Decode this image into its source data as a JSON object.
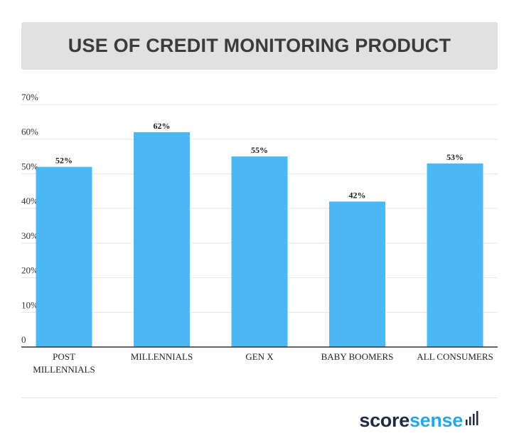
{
  "title": "USE OF CREDIT MONITORING PRODUCT",
  "colors": {
    "bar": "#4bb8f3",
    "grid": "#e3e3e3",
    "axis": "#333333",
    "brand_dark": "#1f2a44",
    "brand_light": "#27a6e6"
  },
  "chart_data": {
    "type": "bar",
    "categories": [
      [
        "POST",
        "MILLENNIALS"
      ],
      [
        "MILLENNIALS"
      ],
      [
        "GEN X"
      ],
      [
        "BABY BOOMERS"
      ],
      [
        "ALL CONSUMERS"
      ]
    ],
    "values": [
      52,
      62,
      55,
      42,
      53
    ],
    "value_labels": [
      "52%",
      "62%",
      "55%",
      "42%",
      "53%"
    ],
    "y_ticks": [
      0,
      10,
      20,
      30,
      40,
      50,
      60,
      70
    ],
    "y_tick_labels": [
      "0",
      "10%",
      "20%",
      "30%",
      "40%",
      "50%",
      "60%",
      "70%"
    ],
    "ylim": [
      0,
      70
    ],
    "grid": true,
    "title": "USE OF CREDIT MONITORING PRODUCT",
    "xlabel": "",
    "ylabel": ""
  },
  "logo": {
    "part1": "score",
    "part2": "sense",
    "icon": "signal-bars-icon"
  }
}
